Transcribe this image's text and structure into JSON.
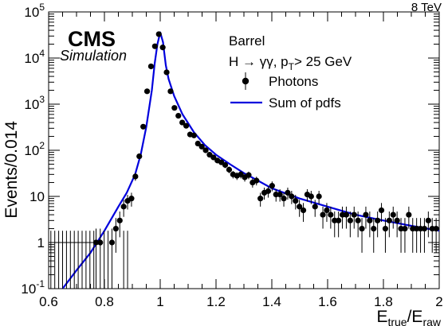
{
  "chart_data": {
    "type": "scatter",
    "experiment_label": "CMS",
    "experiment_sublabel": "Simulation",
    "energy_label": "8 TeV",
    "region_label": "Barrel",
    "process_label": "H → γγ, p",
    "process_sub": "T",
    "process_cut": "> 25 GeV",
    "xlabel": "E",
    "xlabel_sub1": "true",
    "xlabel_sep": "/E",
    "xlabel_sub2": "raw",
    "ylabel": "Events/0.014",
    "xlim": [
      0.6,
      2.0
    ],
    "ylim": [
      0.1,
      100000
    ],
    "y_scale": "log",
    "x_ticks": [
      0.6,
      0.8,
      1.0,
      1.2,
      1.4,
      1.6,
      1.8,
      2.0
    ],
    "x_tick_labels": [
      "0.6",
      "0.8",
      "1",
      "1.2",
      "1.4",
      "1.6",
      "1.8",
      "2"
    ],
    "y_ticks": [
      0.1,
      1,
      10,
      100,
      1000,
      10000,
      100000
    ],
    "legend_position": "top-right",
    "series": [
      {
        "name": "Photons",
        "kind": "points",
        "color": "#000000",
        "x": [
          0.77,
          0.785,
          0.827,
          0.841,
          0.855,
          0.869,
          0.883,
          0.897,
          0.911,
          0.925,
          0.939,
          0.953,
          0.967,
          0.981,
          0.995,
          1.009,
          1.023,
          1.037,
          1.051,
          1.065,
          1.079,
          1.093,
          1.107,
          1.121,
          1.135,
          1.149,
          1.163,
          1.177,
          1.191,
          1.205,
          1.219,
          1.233,
          1.247,
          1.261,
          1.275,
          1.289,
          1.303,
          1.317,
          1.331,
          1.345,
          1.359,
          1.373,
          1.387,
          1.401,
          1.415,
          1.429,
          1.443,
          1.457,
          1.471,
          1.485,
          1.499,
          1.513,
          1.527,
          1.541,
          1.555,
          1.569,
          1.583,
          1.597,
          1.611,
          1.625,
          1.639,
          1.653,
          1.667,
          1.681,
          1.695,
          1.709,
          1.723,
          1.737,
          1.751,
          1.765,
          1.779,
          1.793,
          1.807,
          1.821,
          1.835,
          1.849,
          1.863,
          1.877,
          1.891,
          1.905,
          1.919,
          1.933,
          1.947,
          1.961,
          1.975,
          1.989
        ],
        "y": [
          1,
          1,
          1,
          2,
          3,
          6,
          8,
          9,
          27,
          74,
          325,
          1900,
          6600,
          18000,
          33000,
          17000,
          4900,
          1900,
          830,
          560,
          400,
          340,
          220,
          210,
          140,
          120,
          100,
          80,
          70,
          60,
          55,
          48,
          38,
          30,
          28,
          30,
          26,
          29,
          20,
          22,
          9,
          12,
          13,
          17,
          11,
          11,
          9,
          12,
          10,
          8,
          6,
          5,
          11,
          10,
          6,
          10,
          4,
          5,
          4,
          3,
          3,
          4,
          4,
          3,
          4,
          3,
          2,
          4,
          3,
          2,
          3,
          5,
          2,
          3,
          4,
          3,
          2,
          2,
          4,
          2,
          2,
          2,
          2,
          3,
          2,
          2
        ],
        "y_err": [
          1,
          1,
          1,
          1.4,
          1.7,
          2.4,
          2.8,
          3,
          5.2,
          8.6,
          18,
          44,
          81,
          134,
          182,
          130,
          70,
          44,
          29,
          24,
          20,
          18,
          15,
          14,
          12,
          11,
          10,
          9,
          8.4,
          7.7,
          7.4,
          6.9,
          6.2,
          5.5,
          5.3,
          5.5,
          5.1,
          5.4,
          4.5,
          4.7,
          3,
          3.5,
          3.6,
          4.1,
          3.3,
          3.3,
          3,
          3.5,
          3.2,
          2.8,
          2.4,
          2.2,
          3.3,
          3.2,
          2.4,
          3.2,
          2,
          2.2,
          2,
          1.7,
          1.7,
          2,
          2,
          1.7,
          2,
          1.7,
          1.4,
          2,
          1.7,
          1.4,
          1.7,
          2.2,
          1.4,
          1.7,
          2,
          1.7,
          1.4,
          1.4,
          2,
          1.4,
          1.4,
          1.4,
          1.4,
          1.7,
          1.4,
          1.4
        ],
        "x_upper_limits": [
          0.608,
          0.622,
          0.636,
          0.65,
          0.664,
          0.678,
          0.692,
          0.706,
          0.72,
          0.734,
          0.748,
          0.762,
          0.799,
          0.813,
          0.869,
          0.883
        ]
      },
      {
        "name": "Sum of pdfs",
        "kind": "line",
        "color": "#0000dd",
        "x": [
          0.6,
          0.65,
          0.7,
          0.75,
          0.8,
          0.85,
          0.88,
          0.91,
          0.93,
          0.95,
          0.97,
          0.98,
          0.99,
          1.0,
          1.01,
          1.02,
          1.03,
          1.05,
          1.08,
          1.12,
          1.16,
          1.2,
          1.25,
          1.3,
          1.35,
          1.4,
          1.5,
          1.6,
          1.7,
          1.8,
          1.9,
          2.0
        ],
        "y": [
          0.05,
          0.1,
          0.25,
          0.6,
          1.8,
          6,
          12,
          30,
          80,
          320,
          2000,
          7500,
          20000,
          36000,
          22000,
          7000,
          3500,
          1500,
          600,
          250,
          130,
          80,
          50,
          32,
          22,
          15,
          9,
          6,
          4,
          3,
          2.3,
          1.8
        ]
      }
    ]
  }
}
